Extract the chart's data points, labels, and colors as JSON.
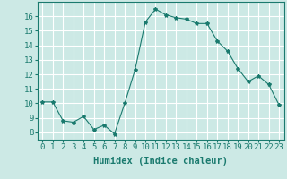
{
  "x": [
    0,
    1,
    2,
    3,
    4,
    5,
    6,
    7,
    8,
    9,
    10,
    11,
    12,
    13,
    14,
    15,
    16,
    17,
    18,
    19,
    20,
    21,
    22,
    23
  ],
  "y": [
    10.1,
    10.1,
    8.8,
    8.7,
    9.1,
    8.2,
    8.5,
    7.9,
    10.0,
    12.3,
    15.6,
    16.5,
    16.1,
    15.9,
    15.8,
    15.5,
    15.5,
    14.3,
    13.6,
    12.4,
    11.5,
    11.9,
    11.3,
    9.9
  ],
  "line_color": "#1a7a6e",
  "marker": "*",
  "marker_size": 3,
  "bg_color": "#cce9e5",
  "grid_color": "#ffffff",
  "xlabel": "Humidex (Indice chaleur)",
  "ylim": [
    7.5,
    17.0
  ],
  "xlim": [
    -0.5,
    23.5
  ],
  "yticks": [
    8,
    9,
    10,
    11,
    12,
    13,
    14,
    15,
    16
  ],
  "xticks": [
    0,
    1,
    2,
    3,
    4,
    5,
    6,
    7,
    8,
    9,
    10,
    11,
    12,
    13,
    14,
    15,
    16,
    17,
    18,
    19,
    20,
    21,
    22,
    23
  ],
  "tick_label_fontsize": 6.5,
  "xlabel_fontsize": 7.5
}
